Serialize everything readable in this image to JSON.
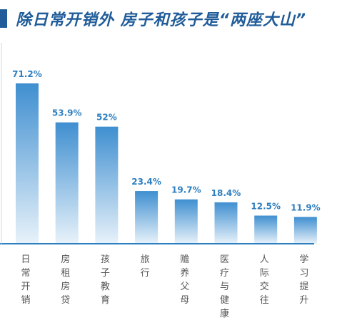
{
  "header": {
    "title": "除日常开销外 房子和孩子是“两座大山”"
  },
  "colors": {
    "accent": "#1f5c99",
    "bar_top": "#3f8fd0",
    "bar_bottom": "#e8f2fa",
    "value_label": "#2e7fc0",
    "axis": "#2e7fc0"
  },
  "chart_data": {
    "type": "bar",
    "title": "除日常开销外 房子和孩子是“两座大山”",
    "categories": [
      "日常开销",
      "房租房贷",
      "孩子教育",
      "旅行",
      "赡养父母",
      "医疗与健康",
      "人际交往",
      "学习提升"
    ],
    "values": [
      71.2,
      53.9,
      52,
      23.4,
      19.7,
      18.4,
      12.5,
      11.9
    ],
    "value_labels": [
      "71.2%",
      "53.9%",
      "52%",
      "23.4%",
      "19.7%",
      "18.4%",
      "12.5%",
      "11.9%"
    ],
    "unit": "%",
    "ylim": [
      0,
      75
    ],
    "grid": false,
    "legend": "none"
  }
}
